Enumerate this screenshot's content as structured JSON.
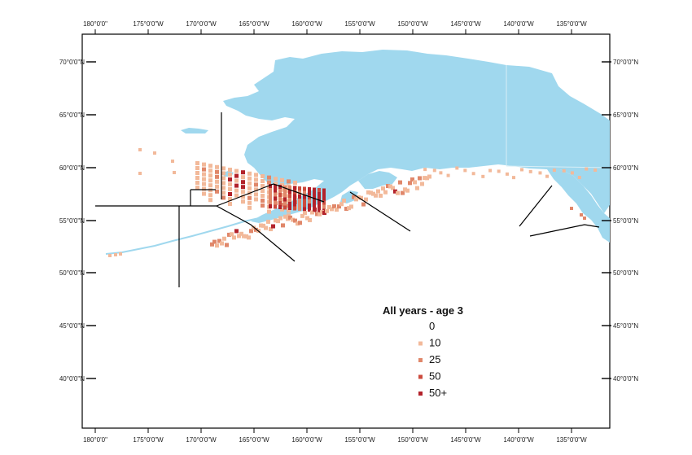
{
  "map": {
    "lon_ticks": [
      "180°0'0\"",
      "175°0'0\"W",
      "170°0'0\"W",
      "165°0'0\"W",
      "160°0'0\"W",
      "155°0'0\"W",
      "150°0'0\"W",
      "145°0'0\"W",
      "140°0'0\"W",
      "135°0'0\"W"
    ],
    "lat_ticks": [
      "70°0'0\"N",
      "65°0'0\"N",
      "60°0'0\"N",
      "55°0'0\"N",
      "50°0'0\"N",
      "45°0'0\"N",
      "40°0'0\"N"
    ],
    "land_color": "#a0d8ee",
    "sea_color": "#ffffff",
    "frame_color": "#000000",
    "boundary_color": "#000000"
  },
  "legend": {
    "title": "All years - age 3",
    "items": [
      {
        "label": "0",
        "color": null
      },
      {
        "label": "10",
        "color": "#f2b99a"
      },
      {
        "label": "25",
        "color": "#e0876a"
      },
      {
        "label": "50",
        "color": "#cc4b3e"
      },
      {
        "label": "50+",
        "color": "#b3222b"
      }
    ]
  }
}
